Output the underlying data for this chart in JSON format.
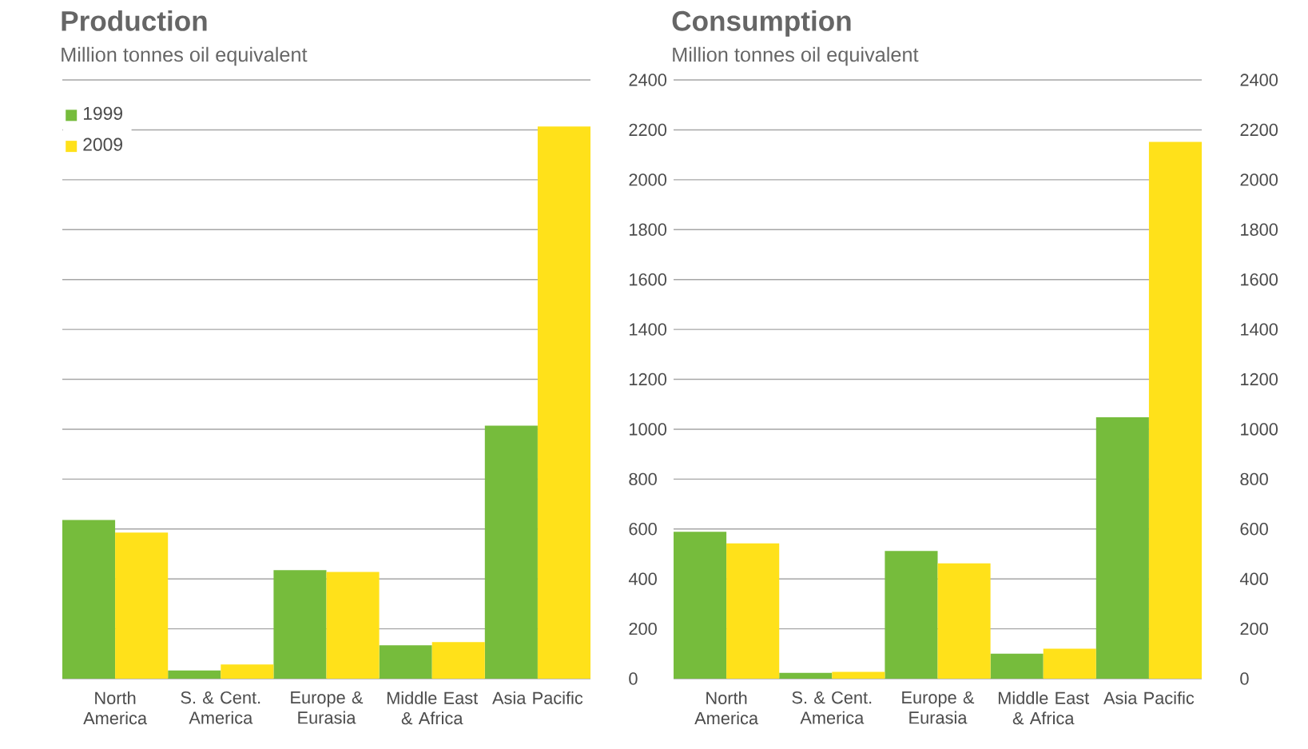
{
  "chart_data": [
    {
      "type": "bar",
      "title": "Production",
      "subtitle": "Million tonnes oil equivalent",
      "categories": [
        "North America",
        "S. & Cent. America",
        "Europe & Eurasia",
        "Middle East & Africa",
        "Asia Pacific"
      ],
      "series": [
        {
          "name": "1999",
          "color": "#76bc3c",
          "values": [
            636,
            33,
            435,
            134,
            1014
          ]
        },
        {
          "name": "2009",
          "color": "#ffe11a",
          "values": [
            586,
            57,
            428,
            147,
            2213
          ]
        }
      ],
      "ylim": [
        0,
        2400
      ],
      "yticks": [
        0,
        200,
        400,
        600,
        800,
        1000,
        1200,
        1400,
        1600,
        1800,
        2000,
        2200,
        2400
      ],
      "grid": "y",
      "legend": "top left"
    },
    {
      "type": "bar",
      "title": "Consumption",
      "subtitle": "Million tonnes oil equivalent",
      "categories": [
        "North America",
        "S. & Cent. America",
        "Europe & Eurasia",
        "Middle East & Africa",
        "Asia Pacific"
      ],
      "series": [
        {
          "color": "#76bc3c",
          "values": [
            589,
            23,
            512,
            100,
            1048
          ]
        },
        {
          "color": "#ffe11a",
          "values": [
            542,
            27,
            462,
            120,
            2152
          ]
        }
      ],
      "ylim": [
        0,
        2400
      ],
      "yticks": [
        0,
        200,
        400,
        600,
        800,
        1000,
        1200,
        1400,
        1600,
        1800,
        2000,
        2200,
        2400
      ],
      "grid": "y"
    }
  ]
}
